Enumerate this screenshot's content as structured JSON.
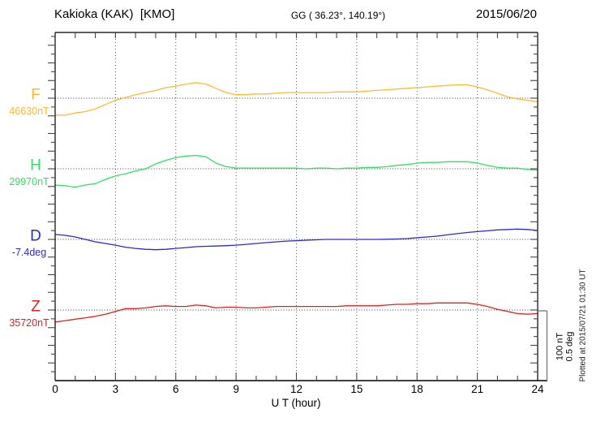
{
  "header": {
    "station": "Kakioka (KAK)  [KMO]",
    "coords": "GG ( 36.23°, 140.19°)",
    "date": "2015/06/20"
  },
  "x_axis": {
    "title": "U T (hour)",
    "tick_hours": [
      0,
      3,
      6,
      9,
      12,
      15,
      18,
      21,
      24
    ],
    "tick_labels": [
      "0",
      "3",
      "6",
      "9",
      "12",
      "15",
      "18",
      "21",
      "24"
    ]
  },
  "scale_bar": {
    "line1": "100 nT",
    "line2": "0.5 deg"
  },
  "footer_note": "Plotted at 2015/07/21 01:30 UT",
  "chart_data": {
    "type": "line",
    "title": "Kakioka (KAK) [KMO] magnetogram 2015/06/20",
    "xlabel": "U T (hour)",
    "x_start": 0,
    "x_end": 24,
    "x_step": 0.5,
    "xlim": [
      0,
      24
    ],
    "grid": "dotted vertical gridlines every 3 h; dotted horizontal baseline per component",
    "scale": {
      "nT_per_division": 100,
      "deg_per_division": 0.5
    },
    "series": [
      {
        "name": "F",
        "label": "F",
        "unit": "nT",
        "baseline_label": "46630nT",
        "baseline_value": 46630,
        "color": "#ffb833",
        "values": [
          46606,
          46606,
          46609,
          46611,
          46615,
          46621,
          46627,
          46631,
          46635,
          46638,
          46641,
          46645,
          46647,
          46650,
          46652,
          46650,
          46644,
          46638,
          46635,
          46635,
          46636,
          46636,
          46637,
          46638,
          46638,
          46638,
          46638,
          46638,
          46639,
          46639,
          46639,
          46640,
          46641,
          46642,
          46643,
          46644,
          46645,
          46646,
          46647,
          46648,
          46649,
          46649,
          46646,
          46642,
          46637,
          46632,
          46629,
          46627,
          46625
        ]
      },
      {
        "name": "H",
        "label": "H",
        "unit": "nT",
        "baseline_label": "29970nT",
        "baseline_value": 29970,
        "color": "#33dd66",
        "values": [
          29947,
          29946,
          29944,
          29947,
          29949,
          29955,
          29960,
          29963,
          29967,
          29970,
          29977,
          29982,
          29986,
          29988,
          29989,
          29987,
          29978,
          29973,
          29971,
          29971,
          29971,
          29971,
          29971,
          29971,
          29971,
          29970,
          29971,
          29971,
          29970,
          29971,
          29971,
          29972,
          29972,
          29973,
          29975,
          29976,
          29978,
          29979,
          29979,
          29980,
          29980,
          29980,
          29978,
          29975,
          29972,
          29971,
          29971,
          29969,
          29968
        ]
      },
      {
        "name": "D",
        "label": "D",
        "unit": "deg",
        "baseline_label": "-7.4deg",
        "baseline_value": -7.4,
        "color": "#2a2acc",
        "values": [
          -7.365,
          -7.371,
          -7.383,
          -7.4,
          -7.417,
          -7.429,
          -7.441,
          -7.455,
          -7.464,
          -7.47,
          -7.473,
          -7.47,
          -7.464,
          -7.458,
          -7.452,
          -7.449,
          -7.447,
          -7.444,
          -7.441,
          -7.435,
          -7.429,
          -7.423,
          -7.417,
          -7.412,
          -7.409,
          -7.406,
          -7.403,
          -7.4,
          -7.4,
          -7.4,
          -7.4,
          -7.4,
          -7.4,
          -7.399,
          -7.397,
          -7.394,
          -7.388,
          -7.383,
          -7.377,
          -7.368,
          -7.359,
          -7.351,
          -7.345,
          -7.339,
          -7.333,
          -7.33,
          -7.327,
          -7.33,
          -7.336
        ]
      },
      {
        "name": "Z",
        "label": "Z",
        "unit": "nT",
        "baseline_label": "35720nT",
        "baseline_value": 35720,
        "color": "#dd2222",
        "values": [
          35703,
          35705,
          35707,
          35709,
          35711,
          35714,
          35718,
          35722,
          35722,
          35723,
          35725,
          35726,
          35725,
          35725,
          35727,
          35726,
          35723,
          35724,
          35724,
          35723,
          35723,
          35724,
          35725,
          35725,
          35725,
          35725,
          35725,
          35725,
          35725,
          35726,
          35726,
          35726,
          35726,
          35727,
          35728,
          35728,
          35729,
          35729,
          35730,
          35730,
          35730,
          35730,
          35728,
          35725,
          35721,
          35718,
          35715,
          35714,
          35715
        ]
      }
    ]
  }
}
